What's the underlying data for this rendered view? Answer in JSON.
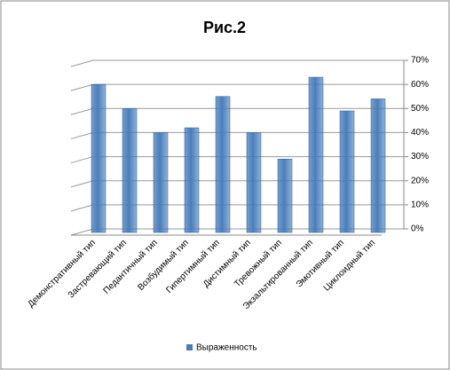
{
  "chart_data": {
    "type": "bar",
    "title": "Рис.2",
    "categories": [
      "Демонстративный тип",
      "Застревающий тип",
      "Педантичный тип",
      "Возбудимый тип",
      "Гипертимный тип",
      "Дистимный тип",
      "Тревожный тип",
      "Экзальтированный тип",
      "Эмотивный тип",
      "Циклоидный тип"
    ],
    "series": [
      {
        "name": "Выраженность",
        "color": "#4a7ebb",
        "values": [
          60,
          50,
          40,
          42,
          55,
          40,
          29,
          63,
          49,
          54
        ]
      }
    ],
    "ylim": [
      0,
      70
    ],
    "yticks": [
      {
        "value": 0,
        "label": "0%"
      },
      {
        "value": 10,
        "label": "10%"
      },
      {
        "value": 20,
        "label": "20%"
      },
      {
        "value": 30,
        "label": "30%"
      },
      {
        "value": 40,
        "label": "40%"
      },
      {
        "value": 50,
        "label": "50%"
      },
      {
        "value": 60,
        "label": "60%"
      },
      {
        "value": 70,
        "label": "70%"
      }
    ],
    "grid": true,
    "legend": "bottom"
  }
}
